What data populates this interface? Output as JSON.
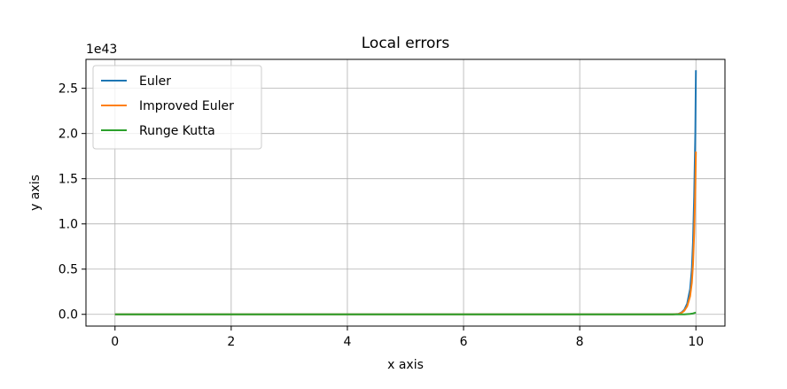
{
  "chart_data": {
    "type": "line",
    "title": "Local errors",
    "xlabel": "x axis",
    "ylabel": "y axis",
    "y_scale_label": "1e43",
    "xlim": [
      -0.5,
      10.5
    ],
    "ylim": [
      -0.13,
      2.82
    ],
    "xticks": [
      0,
      2,
      4,
      6,
      8,
      10
    ],
    "xtick_labels": [
      "0",
      "2",
      "4",
      "6",
      "8",
      "10"
    ],
    "yticks": [
      0.0,
      0.5,
      1.0,
      1.5,
      2.0,
      2.5
    ],
    "ytick_labels": [
      "0.0",
      "0.5",
      "1.0",
      "1.5",
      "2.0",
      "2.5"
    ],
    "grid": true,
    "legend_position": "top-left",
    "series": [
      {
        "name": "Euler",
        "color": "#1f77b4",
        "x": [
          0,
          9.6,
          9.7,
          9.75,
          9.8,
          9.85,
          9.9,
          9.93,
          9.95,
          9.97,
          9.99,
          10.0
        ],
        "y": [
          0,
          0,
          0.005,
          0.02,
          0.05,
          0.12,
          0.28,
          0.5,
          0.8,
          1.3,
          2.0,
          2.7
        ]
      },
      {
        "name": "Improved Euler",
        "color": "#ff7f0e",
        "x": [
          0,
          9.6,
          9.7,
          9.75,
          9.8,
          9.85,
          9.9,
          9.93,
          9.95,
          9.97,
          9.99,
          10.0
        ],
        "y": [
          0,
          0,
          0.004,
          0.015,
          0.04,
          0.09,
          0.2,
          0.35,
          0.55,
          0.9,
          1.4,
          1.8
        ]
      },
      {
        "name": "Runge Kutta",
        "color": "#2ca02c",
        "x": [
          0,
          9.8,
          9.9,
          9.95,
          10.0
        ],
        "y": [
          0,
          0,
          0.005,
          0.01,
          0.02
        ]
      }
    ]
  }
}
